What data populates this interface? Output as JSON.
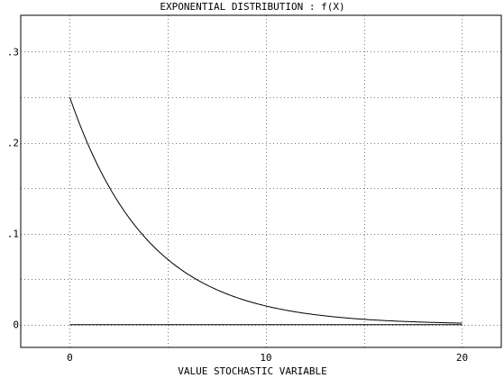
{
  "chart_data": {
    "type": "line",
    "title": "EXPONENTIAL DISTRIBUTION : f(X)",
    "xlabel": "VALUE STOCHASTIC VARIABLE",
    "ylabel": "",
    "xlim": [
      -2.5,
      22
    ],
    "ylim": [
      -0.025,
      0.34
    ],
    "x_ticks": [
      0,
      10,
      20
    ],
    "x_tick_labels": [
      "0",
      "10",
      "20"
    ],
    "x_grid": [
      0,
      5,
      10,
      15,
      20
    ],
    "y_ticks": [
      0,
      0.1,
      0.2,
      0.3
    ],
    "y_tick_labels": [
      "0",
      ".1",
      ".2",
      ".3"
    ],
    "y_grid": [
      0,
      0.05,
      0.1,
      0.15,
      0.2,
      0.25,
      0.3
    ],
    "grid": true,
    "series": [
      {
        "x": [
          0,
          1,
          2,
          3,
          4,
          5,
          6,
          7,
          8,
          9,
          10,
          11,
          12,
          13,
          14,
          15,
          16,
          17,
          18,
          19,
          20
        ],
        "values": [
          0.25,
          0.1947,
          0.1516,
          0.1181,
          0.092,
          0.0716,
          0.0558,
          0.0435,
          0.0338,
          0.0264,
          0.0205,
          0.016,
          0.0124,
          0.0097,
          0.0075,
          0.0059,
          0.0046,
          0.0036,
          0.0028,
          0.0022,
          0.0017
        ],
        "color": "#000000"
      },
      {
        "x": [
          0,
          20
        ],
        "values": [
          0,
          0
        ],
        "color": "#000000"
      }
    ]
  }
}
